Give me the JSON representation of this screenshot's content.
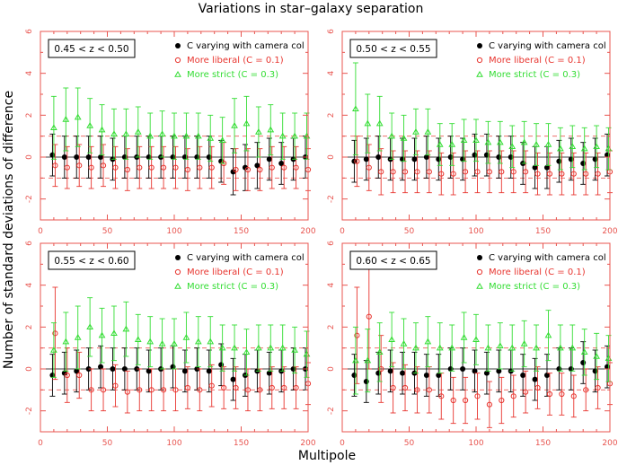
{
  "title": "Variations in star–galaxy separation",
  "xlabel": "Multipole",
  "ylabel": "Number of standard deviations of difference",
  "colors": {
    "axis": "#e8544f",
    "black": "#000000",
    "red": "#e8352f",
    "green": "#33dd33"
  },
  "legend": {
    "black": "C varying with camera col",
    "red": "More liberal (C = 0.1)",
    "green": "More strict (C = 0.3)"
  },
  "chart_data": [
    {
      "type": "scatter",
      "label": "0.45 < z < 0.50",
      "xlim": [
        0,
        200
      ],
      "ylim": [
        -3,
        6
      ],
      "xticks": [
        "0",
        "50",
        "100",
        "150",
        "200"
      ],
      "yticks": [
        "-2",
        "0",
        "2",
        "4",
        "6"
      ],
      "ref_lines": [
        1,
        -1
      ],
      "x": [
        9,
        18,
        27,
        36,
        45,
        54,
        63,
        72,
        81,
        90,
        99,
        108,
        117,
        126,
        135,
        144,
        153,
        162,
        171,
        180,
        189,
        198
      ],
      "series": [
        {
          "name": "C varying with camera col",
          "marker": "filled-circle",
          "color": "black",
          "y": [
            0.1,
            0.0,
            0.0,
            0.0,
            0.0,
            -0.1,
            0.0,
            0.0,
            0.0,
            0.0,
            0.0,
            0.0,
            0.0,
            0.0,
            -0.2,
            -0.7,
            -0.5,
            -0.4,
            -0.1,
            -0.3,
            -0.1,
            0.0
          ],
          "err": [
            1.0,
            1.0,
            1.0,
            1.0,
            1.0,
            1.0,
            1.0,
            1.0,
            1.0,
            1.0,
            1.0,
            1.0,
            1.0,
            1.0,
            1.0,
            1.1,
            1.1,
            1.1,
            1.0,
            1.0,
            1.0,
            1.0
          ]
        },
        {
          "name": "More liberal (C = 0.1)",
          "marker": "open-circle",
          "color": "red",
          "y": [
            -0.4,
            -0.5,
            -0.4,
            -0.5,
            -0.4,
            -0.5,
            -0.6,
            -0.5,
            -0.5,
            -0.5,
            -0.5,
            -0.6,
            -0.5,
            -0.5,
            -0.3,
            -0.6,
            -0.6,
            -0.6,
            -0.5,
            -0.5,
            -0.5,
            -0.6
          ],
          "err": [
            1.0,
            1.0,
            1.0,
            1.0,
            1.0,
            1.0,
            1.0,
            1.0,
            1.0,
            1.0,
            1.0,
            1.0,
            1.0,
            1.0,
            1.0,
            1.0,
            1.0,
            1.0,
            1.0,
            1.0,
            1.0,
            1.0
          ]
        },
        {
          "name": "More strict (C = 0.3)",
          "marker": "open-triangle",
          "color": "green",
          "y": [
            1.4,
            1.8,
            1.9,
            1.5,
            1.3,
            1.1,
            1.1,
            1.2,
            1.0,
            1.1,
            1.0,
            1.0,
            1.0,
            0.9,
            0.8,
            1.5,
            1.6,
            1.2,
            1.3,
            1.0,
            1.0,
            1.0
          ],
          "err": [
            1.5,
            1.5,
            1.4,
            1.3,
            1.2,
            1.2,
            1.2,
            1.2,
            1.1,
            1.1,
            1.1,
            1.1,
            1.1,
            1.1,
            1.1,
            1.3,
            1.3,
            1.2,
            1.2,
            1.1,
            1.1,
            1.1
          ]
        }
      ]
    },
    {
      "type": "scatter",
      "label": "0.50 < z < 0.55",
      "xlim": [
        0,
        200
      ],
      "ylim": [
        -3,
        6
      ],
      "xticks": [
        "0",
        "50",
        "100",
        "150",
        "200"
      ],
      "yticks": [
        "-2",
        "0",
        "2",
        "4",
        "6"
      ],
      "ref_lines": [
        1,
        -1
      ],
      "x": [
        9,
        18,
        27,
        36,
        45,
        54,
        63,
        72,
        81,
        90,
        99,
        108,
        117,
        126,
        135,
        144,
        153,
        162,
        171,
        180,
        189,
        198
      ],
      "series": [
        {
          "name": "C varying with camera col",
          "marker": "filled-circle",
          "color": "black",
          "y": [
            -0.2,
            -0.1,
            0.0,
            -0.1,
            -0.1,
            -0.1,
            0.0,
            -0.1,
            0.0,
            -0.1,
            0.1,
            0.1,
            0.0,
            0.0,
            -0.3,
            -0.5,
            -0.5,
            -0.2,
            -0.1,
            -0.3,
            -0.1,
            0.1
          ],
          "err": [
            1.0,
            1.0,
            1.0,
            1.0,
            1.0,
            1.0,
            1.0,
            1.0,
            1.0,
            1.0,
            1.0,
            1.0,
            1.0,
            1.0,
            1.0,
            1.0,
            1.0,
            1.0,
            1.0,
            1.0,
            1.0,
            1.0
          ]
        },
        {
          "name": "More liberal (C = 0.1)",
          "marker": "open-circle",
          "color": "red",
          "y": [
            -0.2,
            -0.5,
            -0.7,
            -0.7,
            -0.7,
            -0.7,
            -0.7,
            -0.8,
            -0.8,
            -0.7,
            -0.7,
            -0.7,
            -0.7,
            -0.7,
            -0.7,
            -0.8,
            -0.8,
            -0.8,
            -0.8,
            -0.8,
            -0.8,
            -0.7
          ],
          "err": [
            1.2,
            1.1,
            1.1,
            1.0,
            1.0,
            1.0,
            1.0,
            1.0,
            1.0,
            1.0,
            1.0,
            1.0,
            1.0,
            1.0,
            1.0,
            1.0,
            1.0,
            1.0,
            1.0,
            1.0,
            1.0,
            1.0
          ]
        },
        {
          "name": "More strict (C = 0.3)",
          "marker": "open-triangle",
          "color": "green",
          "y": [
            2.3,
            1.6,
            1.6,
            1.0,
            0.9,
            1.2,
            1.2,
            0.6,
            0.6,
            0.8,
            0.8,
            0.7,
            0.7,
            0.5,
            0.7,
            0.6,
            0.6,
            0.4,
            0.5,
            0.4,
            0.5,
            0.4
          ],
          "err": [
            2.2,
            1.4,
            1.3,
            1.1,
            1.1,
            1.1,
            1.1,
            1.0,
            1.0,
            1.0,
            1.0,
            1.0,
            1.0,
            1.0,
            1.0,
            1.0,
            1.0,
            1.0,
            1.0,
            1.0,
            1.0,
            1.0
          ]
        }
      ]
    },
    {
      "type": "scatter",
      "label": "0.55 < z < 0.60",
      "xlim": [
        0,
        200
      ],
      "ylim": [
        -3,
        6
      ],
      "xticks": [
        "0",
        "50",
        "100",
        "150",
        "200"
      ],
      "yticks": [
        "-2",
        "0",
        "2",
        "4",
        "6"
      ],
      "ref_lines": [
        1,
        -1
      ],
      "x": [
        9,
        18,
        27,
        36,
        45,
        54,
        63,
        72,
        81,
        90,
        99,
        108,
        117,
        126,
        135,
        144,
        153,
        162,
        171,
        180,
        189,
        198
      ],
      "series": [
        {
          "name": "C varying with camera col",
          "marker": "filled-circle",
          "color": "black",
          "y": [
            -0.3,
            -0.2,
            -0.1,
            0.0,
            0.1,
            0.0,
            0.0,
            0.0,
            -0.1,
            0.0,
            0.1,
            -0.1,
            0.0,
            -0.1,
            0.2,
            -0.5,
            -0.3,
            -0.1,
            -0.2,
            -0.1,
            0.0,
            0.0
          ],
          "err": [
            1.0,
            1.0,
            1.0,
            1.0,
            1.0,
            1.0,
            1.0,
            1.0,
            1.0,
            1.0,
            1.0,
            1.0,
            1.0,
            1.0,
            1.0,
            1.0,
            1.0,
            1.0,
            1.0,
            1.0,
            1.0,
            1.0
          ]
        },
        {
          "name": "More liberal (C = 0.1)",
          "marker": "open-circle",
          "color": "red",
          "y": [
            1.7,
            -0.3,
            -0.3,
            -1.0,
            -1.0,
            -0.8,
            -1.1,
            -1.0,
            -1.0,
            -1.0,
            -1.0,
            -0.9,
            -1.0,
            -0.8,
            -0.9,
            -0.9,
            -1.0,
            -1.0,
            -0.9,
            -0.9,
            -0.9,
            -0.7
          ],
          "err": [
            2.2,
            1.3,
            1.1,
            1.0,
            1.0,
            1.0,
            1.0,
            1.0,
            1.0,
            1.0,
            1.0,
            1.0,
            1.0,
            1.0,
            1.0,
            1.0,
            1.0,
            1.0,
            1.0,
            1.0,
            1.0,
            1.0
          ]
        },
        {
          "name": "More strict (C = 0.3)",
          "marker": "open-triangle",
          "color": "green",
          "y": [
            0.9,
            1.3,
            1.5,
            2.0,
            1.6,
            1.7,
            1.9,
            1.4,
            1.3,
            1.2,
            1.2,
            1.5,
            1.3,
            1.3,
            1.0,
            1.0,
            0.8,
            1.0,
            1.0,
            1.0,
            0.9,
            0.7
          ],
          "err": [
            1.3,
            1.4,
            1.5,
            1.4,
            1.3,
            1.3,
            1.3,
            1.2,
            1.2,
            1.2,
            1.2,
            1.2,
            1.2,
            1.2,
            1.1,
            1.1,
            1.1,
            1.1,
            1.1,
            1.1,
            1.1,
            1.1
          ]
        }
      ]
    },
    {
      "type": "scatter",
      "label": "0.60 < z < 0.65",
      "xlim": [
        0,
        200
      ],
      "ylim": [
        -3,
        6
      ],
      "xticks": [
        "0",
        "50",
        "100",
        "150",
        "200"
      ],
      "yticks": [
        "-2",
        "0",
        "2",
        "4",
        "6"
      ],
      "ref_lines": [
        1,
        -1
      ],
      "x": [
        9,
        18,
        27,
        36,
        45,
        54,
        63,
        72,
        81,
        90,
        99,
        108,
        117,
        126,
        135,
        144,
        153,
        162,
        171,
        180,
        189,
        198
      ],
      "series": [
        {
          "name": "C varying with camera col",
          "marker": "filled-circle",
          "color": "black",
          "y": [
            -0.3,
            -0.6,
            -0.2,
            -0.1,
            -0.2,
            -0.2,
            -0.3,
            -0.3,
            0.0,
            0.0,
            -0.1,
            -0.2,
            -0.1,
            -0.1,
            -0.3,
            -0.5,
            -0.3,
            0.0,
            0.0,
            0.3,
            -0.1,
            0.1
          ],
          "err": [
            1.0,
            1.0,
            1.0,
            1.0,
            1.0,
            1.0,
            1.0,
            1.0,
            1.0,
            1.0,
            1.0,
            1.0,
            1.0,
            1.0,
            1.0,
            1.0,
            1.0,
            1.0,
            1.0,
            1.0,
            1.0,
            1.0
          ]
        },
        {
          "name": "More liberal (C = 0.1)",
          "marker": "open-circle",
          "color": "red",
          "y": [
            1.6,
            2.5,
            0.0,
            -0.9,
            -0.9,
            -1.0,
            -1.0,
            -1.3,
            -1.5,
            -1.5,
            -1.3,
            -1.7,
            -1.5,
            -1.3,
            -1.1,
            -0.9,
            -1.2,
            -1.2,
            -1.3,
            -1.0,
            -0.9,
            -0.7
          ],
          "err": [
            2.3,
            2.5,
            1.6,
            1.2,
            1.1,
            1.1,
            1.1,
            1.1,
            1.1,
            1.1,
            1.1,
            1.1,
            1.1,
            1.0,
            1.0,
            1.0,
            1.0,
            1.0,
            1.0,
            1.0,
            1.0,
            1.0
          ]
        },
        {
          "name": "More strict (C = 0.3)",
          "marker": "open-triangle",
          "color": "green",
          "y": [
            0.4,
            0.4,
            0.8,
            1.4,
            1.2,
            1.0,
            1.3,
            1.0,
            1.0,
            1.5,
            1.4,
            1.0,
            1.1,
            1.0,
            1.2,
            1.0,
            1.6,
            1.0,
            1.0,
            0.8,
            0.6,
            0.5
          ],
          "err": [
            1.6,
            1.5,
            1.4,
            1.3,
            1.2,
            1.2,
            1.2,
            1.2,
            1.1,
            1.2,
            1.2,
            1.1,
            1.1,
            1.1,
            1.1,
            1.1,
            1.2,
            1.1,
            1.1,
            1.1,
            1.1,
            1.1
          ]
        }
      ]
    }
  ]
}
